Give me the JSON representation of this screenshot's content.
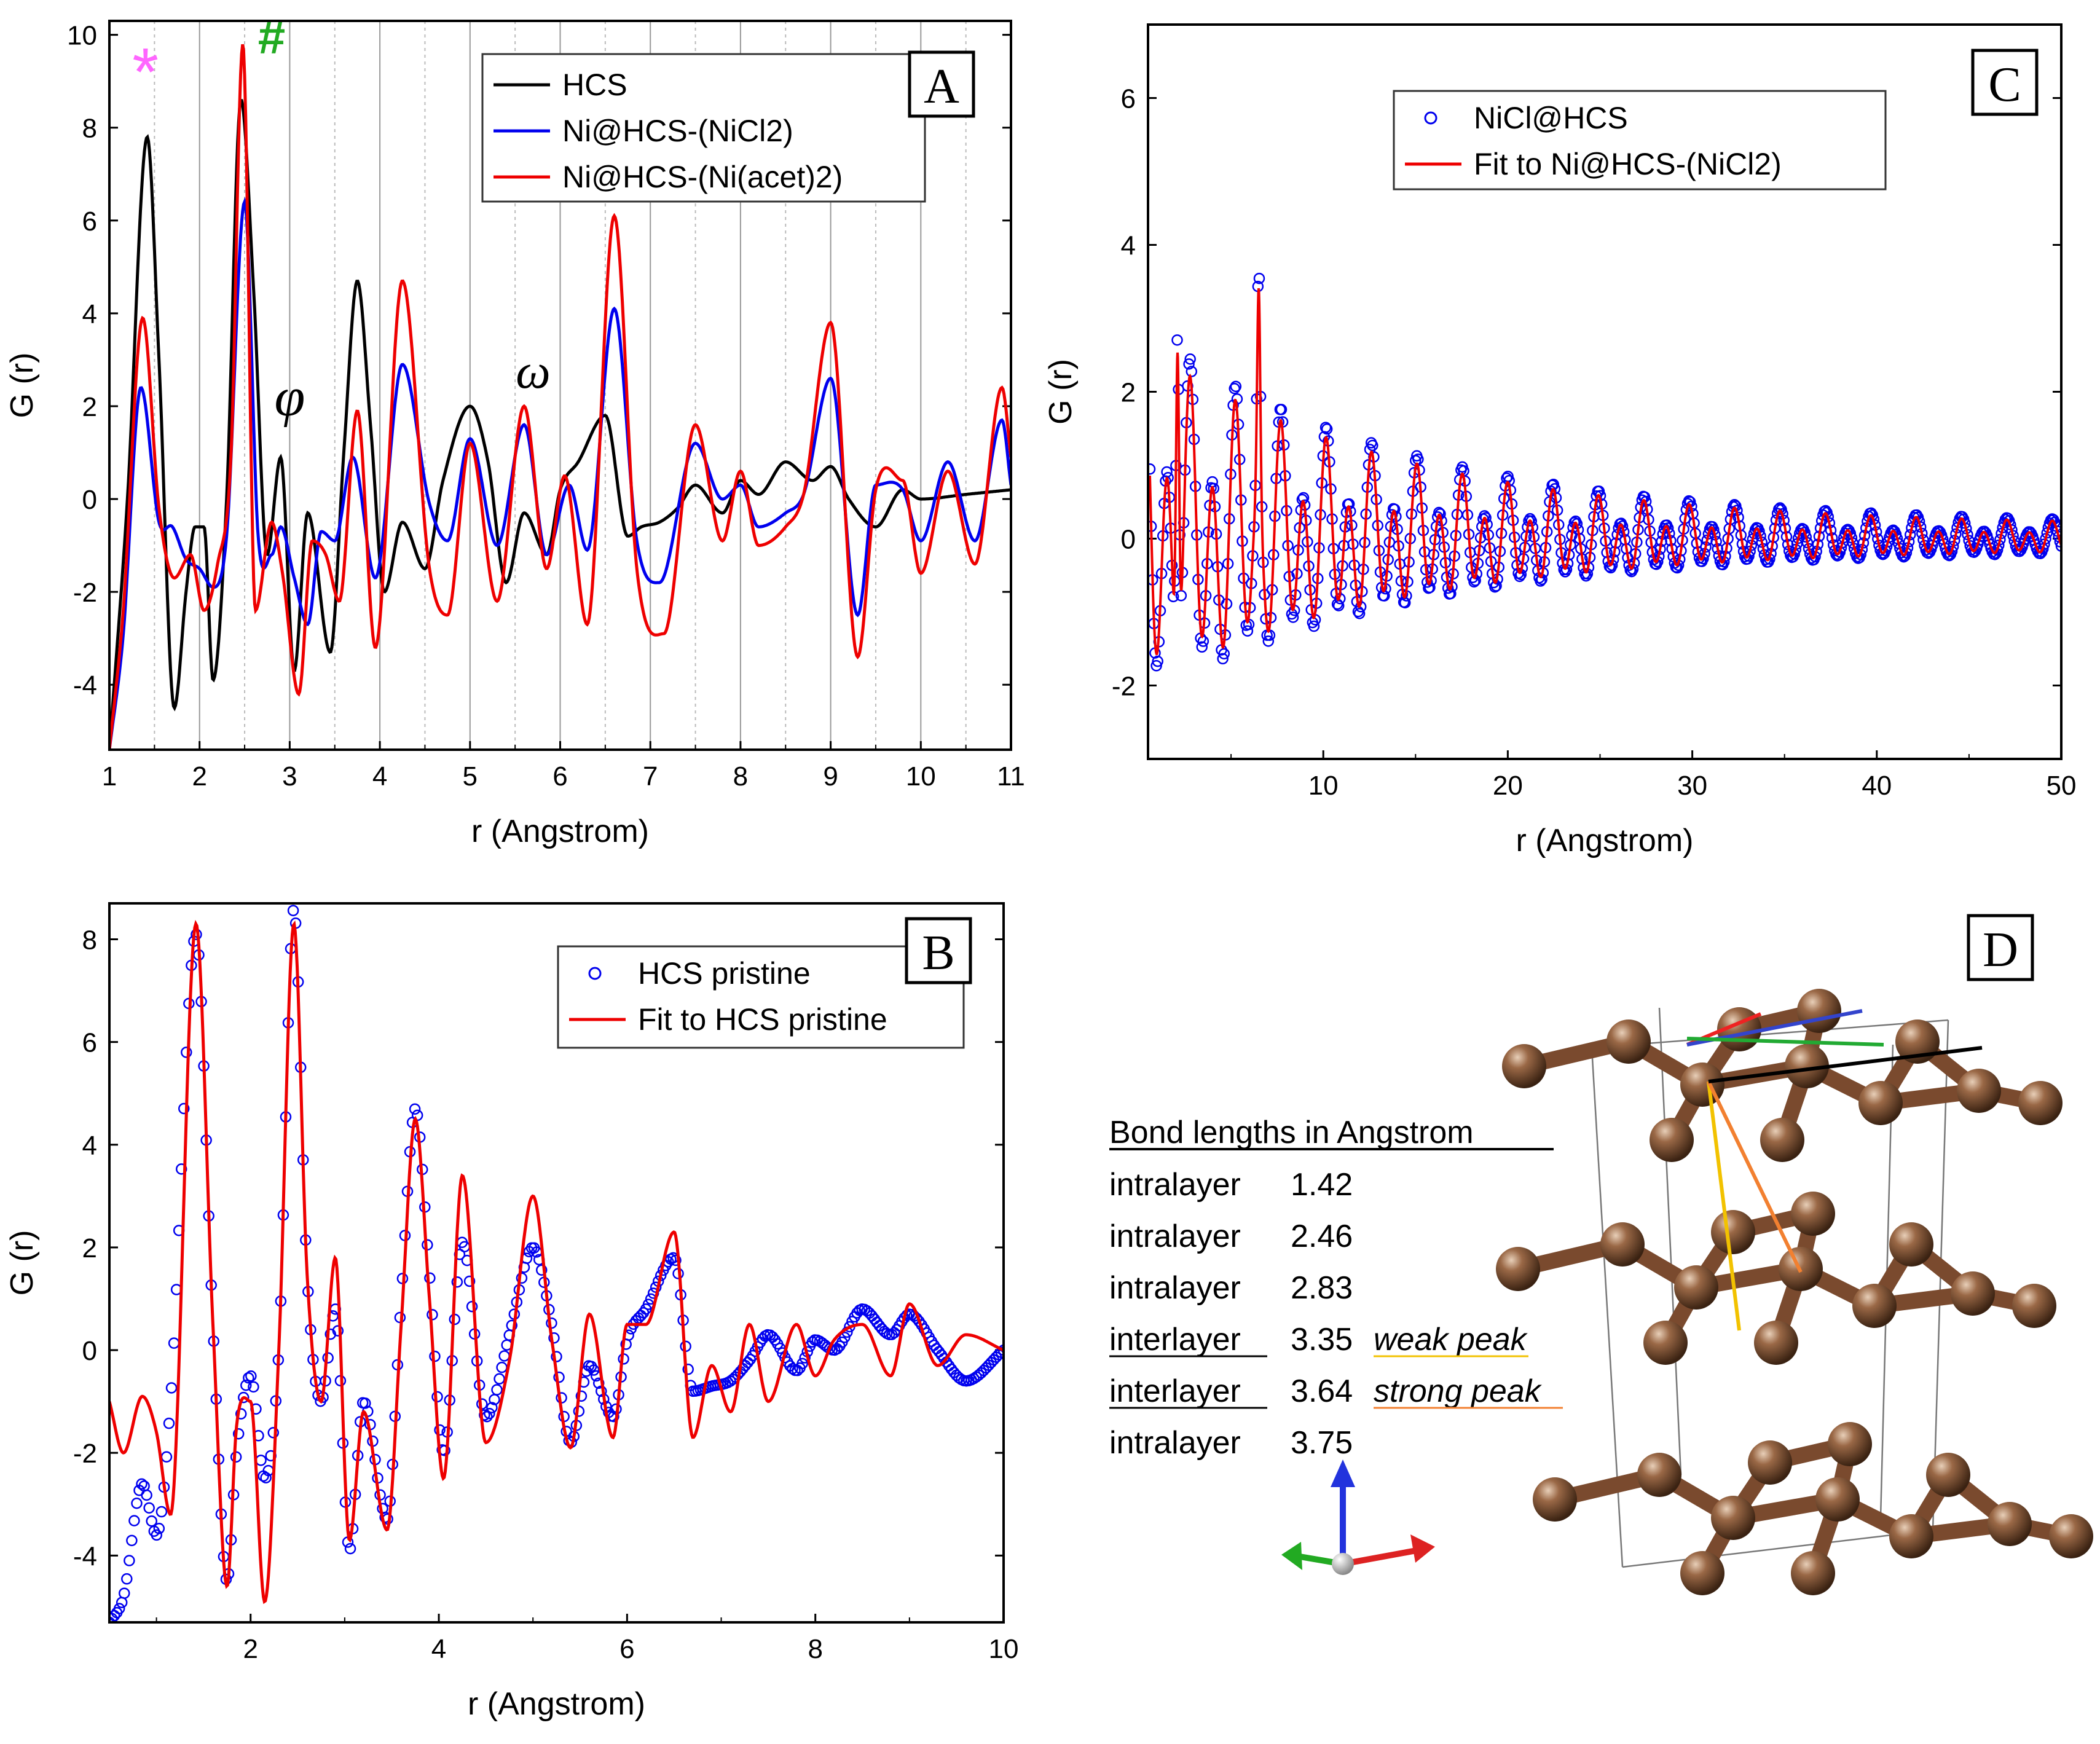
{
  "chart_data": [
    {
      "panel": "A",
      "type": "line",
      "xlabel": "r (Angstrom)",
      "ylabel": "G (r)",
      "xlim": [
        1,
        11
      ],
      "ylim": [
        -5.4,
        10.3
      ],
      "xticks": [
        1,
        2,
        3,
        4,
        5,
        6,
        7,
        8,
        9,
        10,
        11
      ],
      "yticks": [
        -4,
        -2,
        0,
        2,
        4,
        6,
        8,
        10
      ],
      "grid": "vertical dotted",
      "legend_position": "top-right",
      "annotations": [
        {
          "text": "*",
          "x": 1.4,
          "y": 8.7,
          "color": "#ff66ff"
        },
        {
          "text": "#",
          "x": 2.8,
          "y": 9.6,
          "color": "#22aa22"
        },
        {
          "text": "φ",
          "x": 3.0,
          "y": 1.8,
          "color": "#000000"
        },
        {
          "text": "ω",
          "x": 5.7,
          "y": 2.4,
          "color": "#000000"
        }
      ],
      "series": [
        {
          "name": "HCS",
          "color": "#000000",
          "x": [
            1.0,
            1.2,
            1.42,
            1.55,
            1.72,
            1.85,
            1.95,
            2.05,
            2.15,
            2.3,
            2.46,
            2.6,
            2.75,
            2.9,
            3.05,
            3.2,
            3.45,
            3.6,
            3.75,
            3.9,
            4.05,
            4.25,
            4.5,
            4.7,
            5.0,
            5.2,
            5.4,
            5.6,
            5.85,
            6.0,
            6.2,
            6.5,
            6.75,
            6.9,
            7.1,
            7.3,
            7.5,
            7.8,
            8.0,
            8.2,
            8.5,
            8.8,
            9.0,
            9.2,
            9.5,
            9.8,
            10.0,
            10.5,
            11.0
          ],
          "y": [
            -5.4,
            0,
            7.8,
            3.0,
            -4.5,
            -2.0,
            -0.6,
            -0.6,
            -3.9,
            0.0,
            8.6,
            4.5,
            -1.2,
            0.9,
            -3.7,
            -0.3,
            -3.3,
            1.0,
            4.7,
            1.5,
            -2.0,
            -0.5,
            -1.5,
            0.4,
            2.0,
            0.8,
            -1.8,
            -0.3,
            -1.2,
            0.2,
            0.8,
            1.8,
            -0.8,
            -0.6,
            -0.5,
            -0.2,
            0.3,
            -0.3,
            0.4,
            0.1,
            0.8,
            0.4,
            0.7,
            0.0,
            -0.6,
            0.2,
            0.0,
            0.1,
            0.2
          ]
        },
        {
          "name": "Ni@HCS-(NiCl2)",
          "color": "#0000ee",
          "x": [
            1.0,
            1.15,
            1.35,
            1.55,
            1.7,
            1.85,
            2.0,
            2.15,
            2.3,
            2.5,
            2.65,
            2.8,
            2.9,
            3.05,
            3.2,
            3.35,
            3.5,
            3.7,
            3.95,
            4.25,
            4.55,
            4.75,
            5.0,
            5.3,
            5.6,
            5.85,
            6.1,
            6.3,
            6.6,
            6.85,
            7.1,
            7.5,
            7.8,
            8.0,
            8.2,
            8.5,
            8.7,
            9.0,
            9.3,
            9.5,
            9.8,
            10.0,
            10.3,
            10.6,
            10.9,
            11.0
          ],
          "y": [
            -5.4,
            -3.0,
            2.4,
            -0.5,
            -0.6,
            -1.3,
            -1.5,
            -1.9,
            -0.8,
            6.4,
            -0.8,
            -1.2,
            -0.6,
            -1.7,
            -2.7,
            -0.7,
            -0.9,
            0.9,
            -1.7,
            2.9,
            -0.1,
            -0.9,
            1.3,
            -1.0,
            1.6,
            -1.2,
            0.3,
            -1.1,
            4.1,
            -0.9,
            -1.8,
            1.2,
            0.0,
            0.3,
            -0.6,
            -0.3,
            0.1,
            2.6,
            -2.5,
            0.3,
            0.2,
            -0.9,
            0.8,
            -0.9,
            1.7,
            0.3
          ]
        },
        {
          "name": "Ni@HCS-(Ni(acet)2)",
          "color": "#ee0000",
          "x": [
            1.0,
            1.15,
            1.37,
            1.55,
            1.72,
            1.9,
            2.05,
            2.2,
            2.35,
            2.48,
            2.62,
            2.8,
            2.92,
            3.1,
            3.25,
            3.4,
            3.55,
            3.75,
            3.95,
            4.25,
            4.55,
            4.75,
            5.0,
            5.3,
            5.6,
            5.85,
            6.05,
            6.3,
            6.6,
            6.85,
            7.15,
            7.5,
            7.8,
            8.0,
            8.2,
            8.5,
            8.7,
            9.0,
            9.3,
            9.5,
            9.8,
            10.0,
            10.3,
            10.6,
            10.9,
            11.0
          ],
          "y": [
            -5.4,
            -2.5,
            3.9,
            -0.2,
            -1.7,
            -1.2,
            -2.4,
            -1.4,
            1.0,
            9.8,
            -2.4,
            -0.5,
            -1.6,
            -4.2,
            -0.9,
            -1.2,
            -2.2,
            1.9,
            -3.2,
            4.7,
            -1.5,
            -2.5,
            1.2,
            -2.2,
            2.0,
            -1.5,
            0.5,
            -2.7,
            6.1,
            -1.5,
            -2.9,
            1.6,
            -0.9,
            0.6,
            -1.0,
            -0.6,
            0.1,
            3.8,
            -3.4,
            0.2,
            0.4,
            -1.6,
            0.6,
            -1.4,
            2.4,
            0.9
          ]
        }
      ]
    },
    {
      "panel": "B",
      "type": "line",
      "xlabel": "r (Angstrom)",
      "ylabel": "G (r)",
      "xlim": [
        0.5,
        10
      ],
      "ylim": [
        -5.3,
        8.7
      ],
      "xticks": [
        2,
        4,
        6,
        8,
        10
      ],
      "yticks": [
        -4,
        -2,
        0,
        2,
        4,
        6,
        8
      ],
      "legend_position": "top-right",
      "series": [
        {
          "name": "HCS pristine",
          "color": "#0000ee",
          "marker": "circle",
          "x": [
            0.5,
            0.65,
            0.85,
            1.0,
            1.15,
            1.42,
            1.6,
            1.75,
            1.85,
            2.0,
            2.15,
            2.3,
            2.46,
            2.6,
            2.75,
            2.9,
            3.05,
            3.2,
            3.45,
            3.6,
            3.75,
            3.9,
            4.05,
            4.25,
            4.5,
            4.75,
            5.0,
            5.2,
            5.4,
            5.6,
            5.85,
            6.0,
            6.2,
            6.5,
            6.7,
            6.9,
            7.1,
            7.3,
            7.5,
            7.8,
            8.0,
            8.2,
            8.5,
            8.8,
            9.0,
            9.3,
            9.6,
            10.0
          ],
          "y": [
            -5.3,
            -4.8,
            -2.6,
            -3.6,
            -1.0,
            8.1,
            0.5,
            -4.5,
            -2.0,
            -0.5,
            -2.5,
            0.0,
            8.6,
            1.5,
            -1.0,
            0.8,
            -3.9,
            -1.0,
            -3.3,
            1.0,
            4.7,
            1.5,
            -2.0,
            2.1,
            -1.3,
            0.3,
            2.0,
            0.5,
            -1.8,
            -0.3,
            -1.3,
            0.2,
            0.8,
            1.8,
            -0.8,
            -0.7,
            -0.6,
            -0.2,
            0.3,
            -0.4,
            0.2,
            0.0,
            0.8,
            0.3,
            0.7,
            0.0,
            -0.6,
            0.0
          ]
        },
        {
          "name": "Fit to HCS pristine",
          "color": "#ee0000",
          "x": [
            0.5,
            0.65,
            0.85,
            1.0,
            1.15,
            1.42,
            1.6,
            1.75,
            1.85,
            2.0,
            2.15,
            2.3,
            2.46,
            2.6,
            2.75,
            2.9,
            3.05,
            3.2,
            3.45,
            3.6,
            3.75,
            3.9,
            4.05,
            4.25,
            4.5,
            4.75,
            5.0,
            5.2,
            5.4,
            5.6,
            5.85,
            6.0,
            6.2,
            6.5,
            6.7,
            6.9,
            7.1,
            7.3,
            7.5,
            7.8,
            8.0,
            8.2,
            8.5,
            8.8,
            9.0,
            9.3,
            9.6,
            10.0
          ],
          "y": [
            -1.0,
            -2.0,
            -0.9,
            -1.6,
            -3.2,
            8.3,
            0.5,
            -4.6,
            -1.5,
            -1.0,
            -4.9,
            0.0,
            8.3,
            1.5,
            -1.0,
            1.8,
            -3.7,
            -1.2,
            -3.5,
            0.5,
            4.5,
            1.0,
            -2.5,
            3.4,
            -1.8,
            -0.2,
            3.0,
            0.2,
            -1.9,
            0.7,
            -1.7,
            0.5,
            0.5,
            2.3,
            -1.7,
            -0.3,
            -1.2,
            0.5,
            -1.0,
            0.5,
            -0.5,
            0.2,
            0.5,
            -0.5,
            0.9,
            -0.3,
            0.3,
            0.0
          ]
        }
      ]
    },
    {
      "panel": "C",
      "type": "line",
      "xlabel": "r (Angstrom)",
      "ylabel": "G (r)",
      "xlim": [
        0.5,
        50
      ],
      "ylim": [
        -3.0,
        7.0
      ],
      "xticks": [
        10,
        20,
        30,
        40,
        50
      ],
      "yticks": [
        -2,
        0,
        2,
        4,
        6
      ],
      "legend_position": "top-right",
      "series": [
        {
          "name": "NiCl@HCS",
          "color": "#0000ee",
          "marker": "circle"
        },
        {
          "name": "Fit to Ni@HCS-(NiCl2)",
          "color": "#ee0000"
        }
      ]
    }
  ],
  "panels": {
    "A": "A",
    "B": "B",
    "C": "C",
    "D": "D"
  },
  "annotation_text": {
    "star": "*",
    "hash": "#",
    "phi": "φ",
    "omega": "ω"
  },
  "bond_table": {
    "title": "Bond lengths in Angstrom",
    "rows": [
      {
        "type": "intralayer",
        "value": "1.42",
        "color": "#ee2222",
        "note": "",
        "underline": false
      },
      {
        "type": "intralayer",
        "value": "2.46",
        "color": "#3344cc",
        "note": "",
        "underline": false
      },
      {
        "type": "intralayer",
        "value": "2.83",
        "color": "#22aa33",
        "note": "",
        "underline": false
      },
      {
        "type": "interlayer",
        "value": "3.35",
        "color": "#f2c200",
        "note": "weak peak",
        "underline": true
      },
      {
        "type": "interlayer",
        "value": "3.64",
        "color": "#f28030",
        "note": "strong peak",
        "underline": true
      },
      {
        "type": "intralayer",
        "value": "3.75",
        "color": "#000000",
        "note": "",
        "underline": false
      }
    ]
  },
  "colors": {
    "atom": "#7a4a2e",
    "atom_highlight": "#caa58a",
    "bond": "#7a4a2e",
    "axis_x": "#dd2222",
    "axis_y": "#2233dd",
    "axis_z": "#22aa22"
  }
}
